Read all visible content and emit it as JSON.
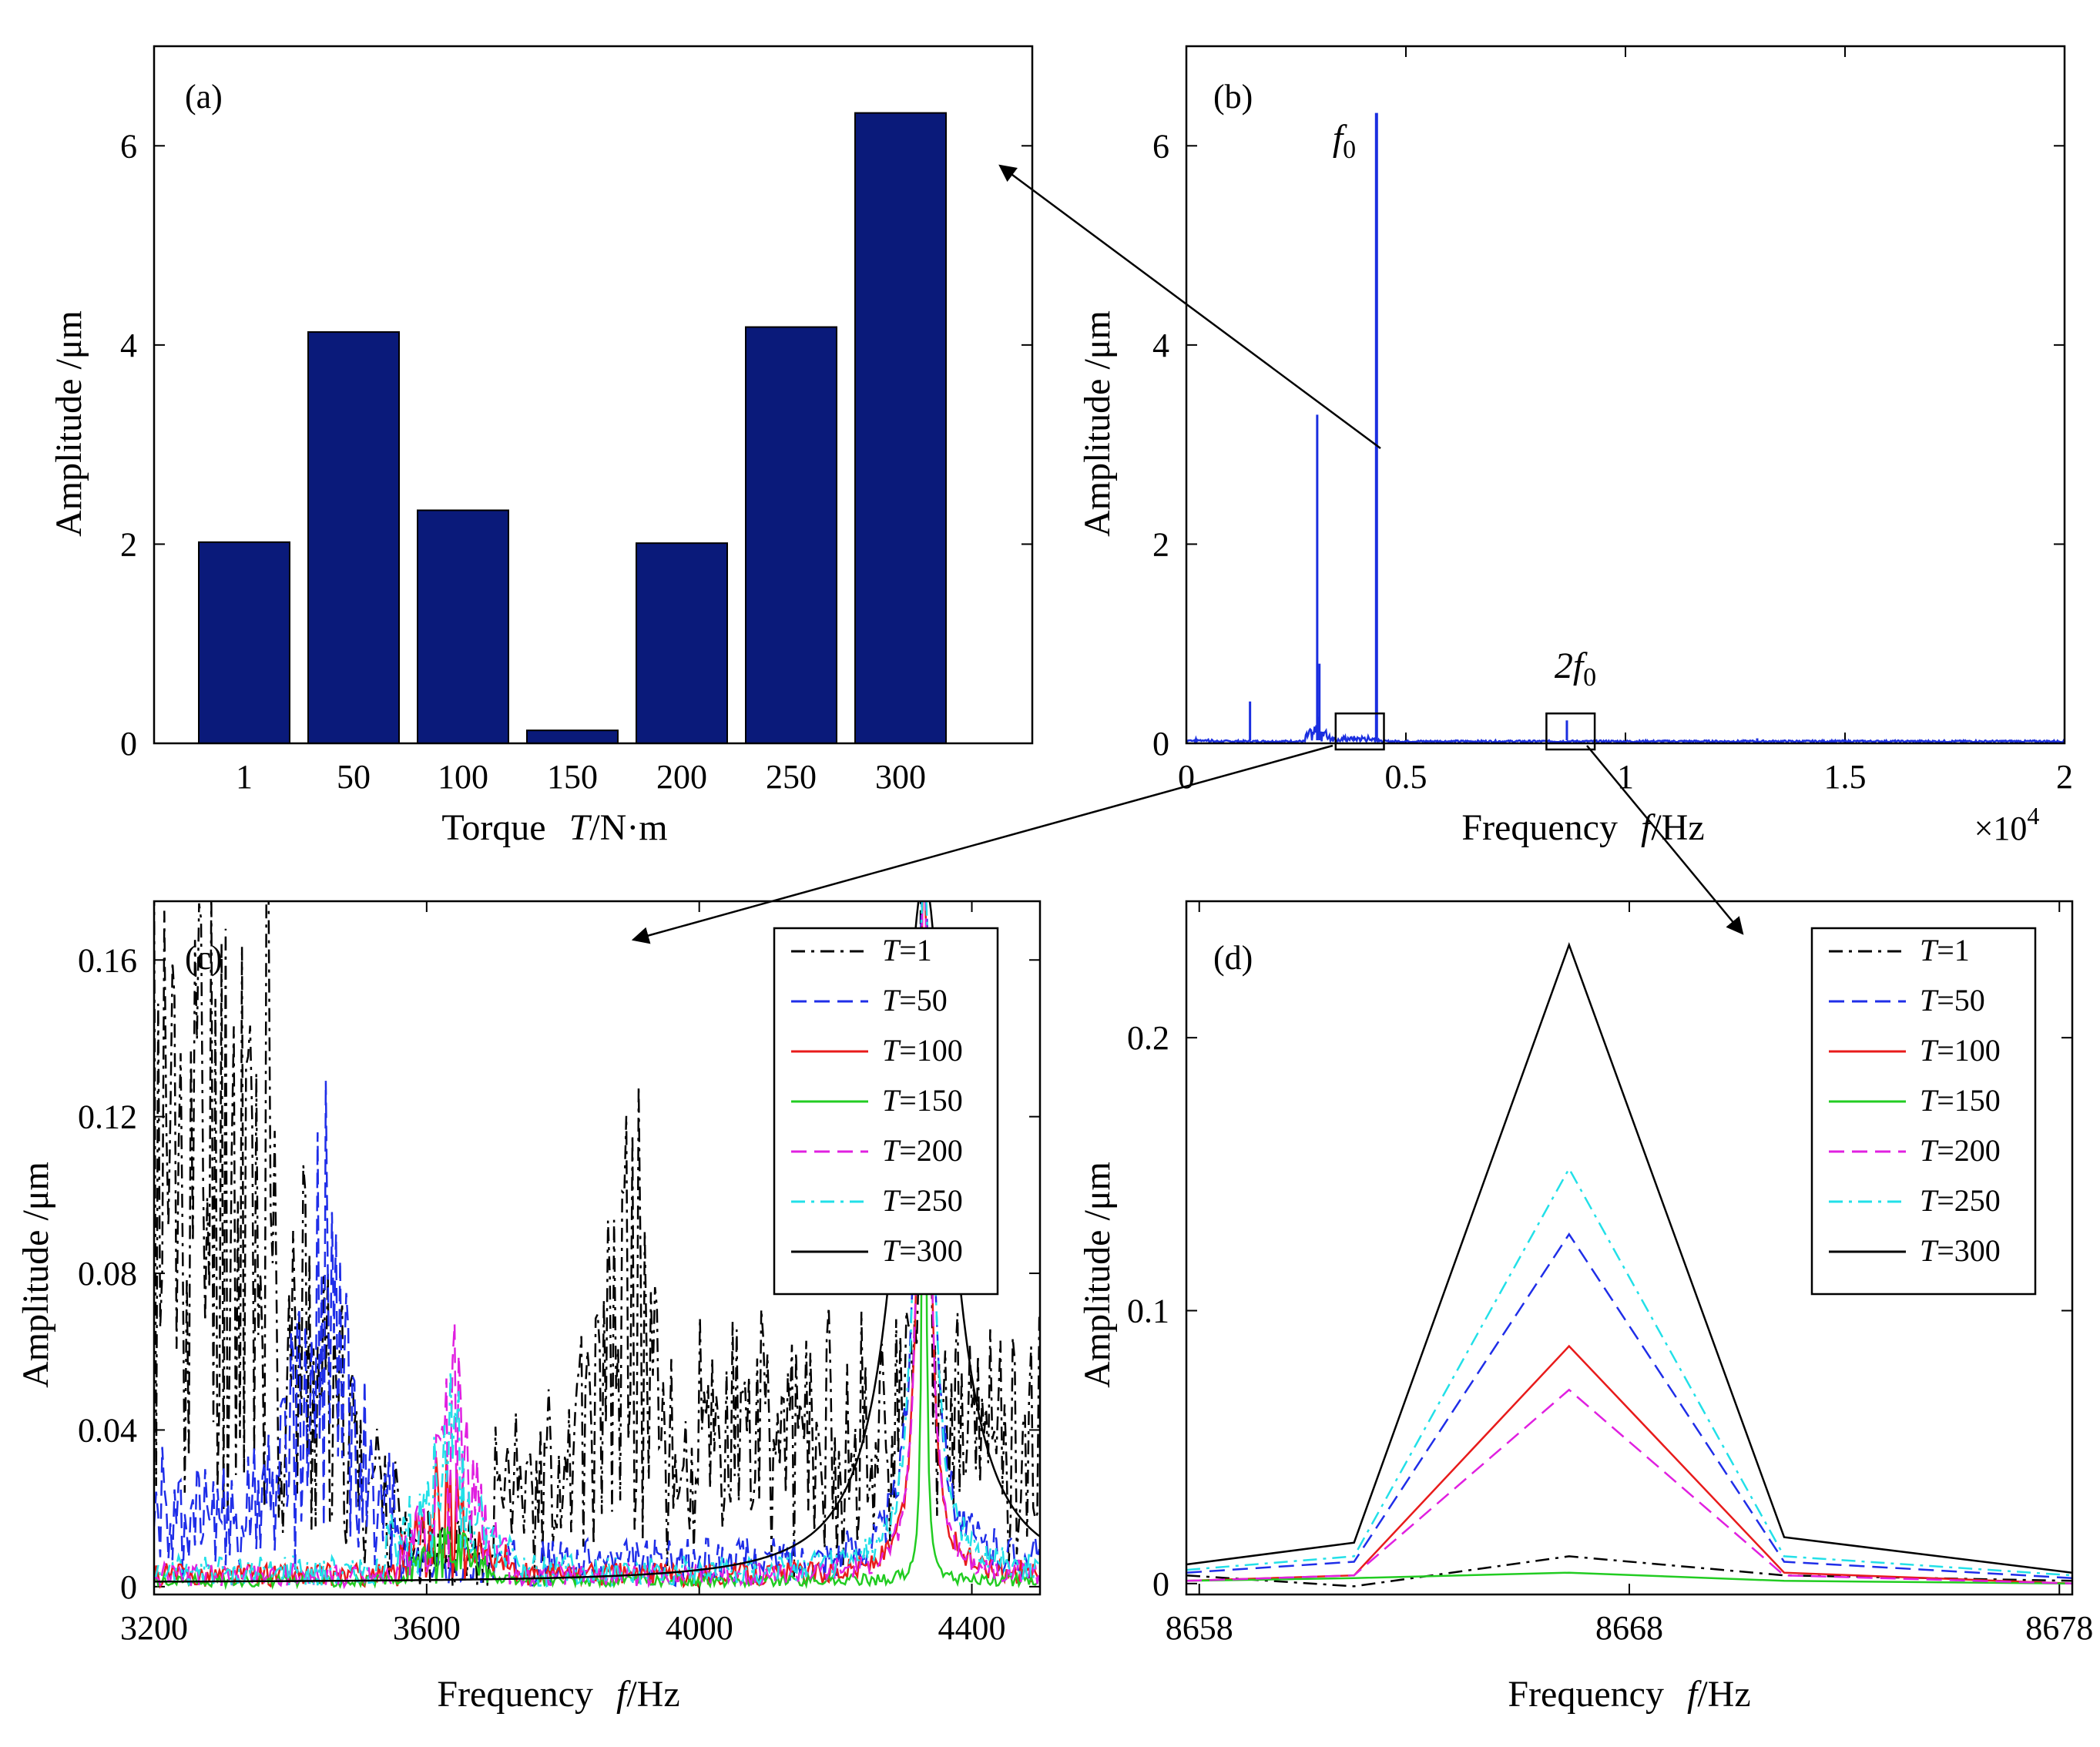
{
  "colors": {
    "bar_fill": "#0a1a7a",
    "spectrum": "#1a2ee0",
    "T1": "#000000",
    "T50": "#1f2ee8",
    "T100": "#e81b1b",
    "T150": "#22cc22",
    "T200": "#e020e0",
    "T250": "#22e0e8",
    "T300": "#000000"
  },
  "chart_data": [
    {
      "id": "a",
      "type": "bar",
      "panel_label": "(a)",
      "categories": [
        "1",
        "50",
        "100",
        "150",
        "200",
        "250",
        "300"
      ],
      "values": [
        2.02,
        4.13,
        2.34,
        0.13,
        2.01,
        4.18,
        6.33
      ],
      "xlabel": "Torque",
      "xlabel_italic": "T",
      "xlabel_unit": "/N·m",
      "ylabel": "Amplitude /μm",
      "ylim": [
        0,
        7
      ],
      "yticks": [
        "0",
        "2",
        "4",
        "6"
      ],
      "ytick_values": [
        0,
        2,
        4,
        6
      ]
    },
    {
      "id": "b",
      "type": "line",
      "panel_label": "(b)",
      "xlabel": "Frequency",
      "xlabel_italic": "f",
      "xlabel_unit": "/Hz",
      "ylabel": "Amplitude /μm",
      "xlim": [
        0,
        20000
      ],
      "ylim": [
        0,
        7
      ],
      "xticks": [
        "0",
        "0.5",
        "1",
        "1.5",
        "2"
      ],
      "xtick_values": [
        0,
        5000,
        10000,
        15000,
        20000
      ],
      "yticks": [
        "0",
        "2",
        "4",
        "6"
      ],
      "ytick_values": [
        0,
        2,
        4,
        6
      ],
      "x_multiplier": "×10",
      "x_multiplier_exp": "4",
      "peaks": [
        {
          "f": 1450,
          "amp": 0.42
        },
        {
          "f": 2980,
          "amp": 3.3
        },
        {
          "f": 3030,
          "amp": 0.8
        },
        {
          "f": 4330,
          "amp": 6.33
        },
        {
          "f": 8666,
          "amp": 0.23
        },
        {
          "f": 13000,
          "amp": 0.05
        }
      ],
      "annotations": [
        {
          "text": "f",
          "sub": "0",
          "f": 4330
        },
        {
          "text": "2f",
          "sub": "0",
          "f": 8666
        }
      ],
      "zoom_boxes": [
        {
          "x": [
            3400,
            4500
          ],
          "y": [
            0,
            0.3
          ]
        },
        {
          "x": [
            8200,
            9300
          ],
          "y": [
            0,
            0.3
          ]
        }
      ]
    },
    {
      "id": "c",
      "type": "line",
      "panel_label": "(c)",
      "xlabel": "Frequency",
      "xlabel_italic": "f",
      "xlabel_unit": "/Hz",
      "ylabel": "Amplitude /μm",
      "xlim": [
        3200,
        4500
      ],
      "ylim": [
        -0.002,
        0.175
      ],
      "xticks": [
        "3200",
        "3600",
        "4000",
        "4400"
      ],
      "xtick_values": [
        3200,
        3600,
        4000,
        4400
      ],
      "yticks": [
        "0",
        "0.04",
        "0.08",
        "0.12",
        "0.16"
      ],
      "ytick_values": [
        0,
        0.04,
        0.08,
        0.12,
        0.16
      ],
      "series": [
        {
          "name": "T=1",
          "key": "T1"
        },
        {
          "name": "T=50",
          "key": "T50"
        },
        {
          "name": "T=100",
          "key": "T100"
        },
        {
          "name": "T=150",
          "key": "T150"
        },
        {
          "name": "T=200",
          "key": "T200"
        },
        {
          "name": "T=250",
          "key": "T250"
        },
        {
          "name": "T=300",
          "key": "T300"
        }
      ],
      "resonance_hz": 4330
    },
    {
      "id": "d",
      "type": "line",
      "panel_label": "(d)",
      "xlabel": "Frequency",
      "xlabel_italic": "f",
      "xlabel_unit": "/Hz",
      "ylabel": "Amplitude /μm",
      "xlim": [
        8657.7,
        8678.3
      ],
      "ylim": [
        -0.004,
        0.25
      ],
      "xticks": [
        "8658",
        "8668",
        "8678"
      ],
      "xtick_values": [
        8658,
        8668,
        8678
      ],
      "yticks": [
        "0",
        "0.1",
        "0.2"
      ],
      "ytick_values": [
        0,
        0.1,
        0.2
      ],
      "x": [
        8657.7,
        8661.6,
        8666.6,
        8671.6,
        8678.3
      ],
      "series": [
        {
          "name": "T=1",
          "key": "T1",
          "values": [
            0.003,
            -0.001,
            0.01,
            0.003,
            0.001
          ]
        },
        {
          "name": "T=50",
          "key": "T50",
          "values": [
            0.004,
            0.008,
            0.128,
            0.008,
            0.002
          ]
        },
        {
          "name": "T=100",
          "key": "T100",
          "values": [
            0.001,
            0.003,
            0.087,
            0.004,
            0.0
          ]
        },
        {
          "name": "T=150",
          "key": "T150",
          "values": [
            0.001,
            0.002,
            0.004,
            0.001,
            0.0
          ]
        },
        {
          "name": "T=200",
          "key": "T200",
          "values": [
            0.001,
            0.003,
            0.071,
            0.003,
            0.0
          ]
        },
        {
          "name": "T=250",
          "key": "T250",
          "values": [
            0.005,
            0.01,
            0.152,
            0.01,
            0.003
          ]
        },
        {
          "name": "T=300",
          "key": "T300",
          "values": [
            0.007,
            0.015,
            0.234,
            0.017,
            0.004
          ]
        }
      ]
    }
  ]
}
